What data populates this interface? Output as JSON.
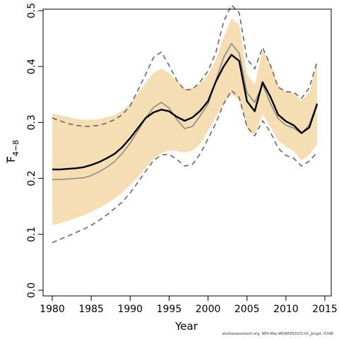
{
  "chart_data": {
    "type": "line",
    "title": "",
    "xlabel": "Year",
    "ylabel_main": "F",
    "ylabel_sub": "4−8",
    "xlim": [
      1979,
      2015
    ],
    "ylim": [
      0,
      0.5
    ],
    "xticks": [
      1980,
      1985,
      1990,
      1995,
      2000,
      2005,
      2010,
      2015
    ],
    "yticks": [
      0.0,
      0.1,
      0.2,
      0.3,
      0.4,
      0.5
    ],
    "ytick_labels": [
      "0.0",
      "0.1",
      "0.2",
      "0.3",
      "0.4",
      "0.5"
    ],
    "grid": false,
    "legend": "none",
    "colors": {
      "band": "#f5deb3",
      "estimate": "#000000",
      "gray_line": "#808080",
      "dashed": "#666666"
    },
    "x": [
      1980,
      1981,
      1982,
      1983,
      1984,
      1985,
      1986,
      1987,
      1988,
      1989,
      1990,
      1991,
      1992,
      1993,
      1994,
      1995,
      1996,
      1997,
      1998,
      1999,
      2000,
      2001,
      2002,
      2003,
      2004,
      2005,
      2006,
      2007,
      2008,
      2009,
      2010,
      2011,
      2012,
      2013,
      2014
    ],
    "series": [
      {
        "role": "ci_lower",
        "values": [
          0.116,
          0.12,
          0.124,
          0.129,
          0.134,
          0.14,
          0.147,
          0.155,
          0.164,
          0.175,
          0.188,
          0.203,
          0.219,
          0.235,
          0.245,
          0.25,
          0.249,
          0.246,
          0.25,
          0.262,
          0.285,
          0.31,
          0.333,
          0.351,
          0.339,
          0.289,
          0.276,
          0.315,
          0.292,
          0.268,
          0.256,
          0.249,
          0.232,
          0.242,
          0.261
        ]
      },
      {
        "role": "ci_upper",
        "values": [
          0.316,
          0.313,
          0.31,
          0.307,
          0.305,
          0.305,
          0.306,
          0.309,
          0.313,
          0.321,
          0.333,
          0.352,
          0.371,
          0.389,
          0.396,
          0.389,
          0.374,
          0.361,
          0.362,
          0.37,
          0.385,
          0.412,
          0.452,
          0.486,
          0.475,
          0.387,
          0.367,
          0.43,
          0.406,
          0.366,
          0.355,
          0.353,
          0.339,
          0.354,
          0.409
        ]
      },
      {
        "role": "dashed_lower",
        "values": [
          0.085,
          0.091,
          0.097,
          0.103,
          0.109,
          0.116,
          0.125,
          0.135,
          0.146,
          0.158,
          0.174,
          0.193,
          0.213,
          0.232,
          0.242,
          0.243,
          0.234,
          0.222,
          0.225,
          0.244,
          0.271,
          0.299,
          0.333,
          0.357,
          0.345,
          0.292,
          0.276,
          0.303,
          0.283,
          0.254,
          0.241,
          0.236,
          0.222,
          0.231,
          0.246
        ]
      },
      {
        "role": "dashed_upper",
        "values": [
          0.308,
          0.303,
          0.298,
          0.295,
          0.293,
          0.293,
          0.295,
          0.299,
          0.305,
          0.314,
          0.33,
          0.358,
          0.386,
          0.416,
          0.426,
          0.402,
          0.375,
          0.358,
          0.359,
          0.373,
          0.392,
          0.425,
          0.48,
          0.51,
          0.496,
          0.414,
          0.396,
          0.434,
          0.403,
          0.363,
          0.355,
          0.354,
          0.343,
          0.362,
          0.409
        ]
      },
      {
        "role": "gray_line",
        "values": [
          0.198,
          0.198,
          0.199,
          0.2,
          0.201,
          0.205,
          0.212,
          0.22,
          0.23,
          0.245,
          0.263,
          0.285,
          0.308,
          0.327,
          0.336,
          0.326,
          0.305,
          0.289,
          0.293,
          0.312,
          0.333,
          0.375,
          0.416,
          0.441,
          0.424,
          0.353,
          0.336,
          0.368,
          0.334,
          0.307,
          0.295,
          0.29,
          0.28,
          0.296,
          0.335
        ]
      },
      {
        "role": "estimate",
        "values": [
          0.216,
          0.216,
          0.217,
          0.218,
          0.22,
          0.224,
          0.229,
          0.236,
          0.244,
          0.256,
          0.272,
          0.29,
          0.308,
          0.318,
          0.323,
          0.32,
          0.31,
          0.303,
          0.309,
          0.321,
          0.338,
          0.373,
          0.4,
          0.421,
          0.41,
          0.338,
          0.32,
          0.372,
          0.346,
          0.314,
          0.302,
          0.295,
          0.281,
          0.291,
          0.333
        ]
      }
    ]
  },
  "footer": "stockassessment.org, NEA-Mac-WGWIDE2015-V1_prcgd, r5398"
}
